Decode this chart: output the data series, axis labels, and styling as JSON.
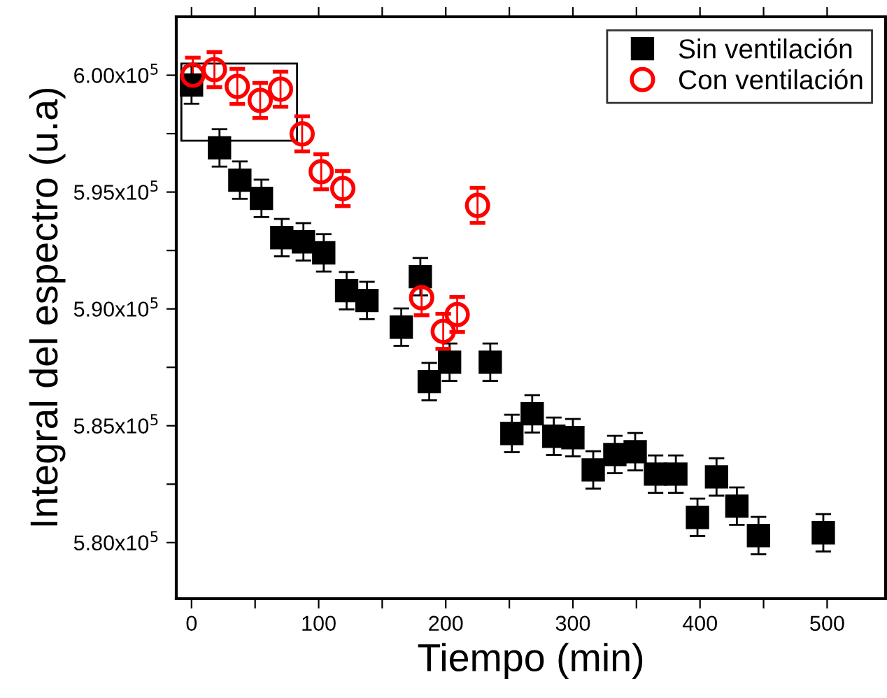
{
  "chart_data": {
    "type": "scatter",
    "xlabel": "Tiempo (min)",
    "ylabel": "Integral del espectro (u.a)",
    "xlim": [
      -12,
      546
    ],
    "ylim": [
      577600,
      602500
    ],
    "xticks": [
      0,
      {
        "value": 50,
        "label": null
      },
      100,
      {
        "value": 150,
        "label": null
      },
      200,
      {
        "value": 250,
        "label": null
      },
      300,
      {
        "value": 350,
        "label": null
      },
      400,
      {
        "value": 450,
        "label": null
      },
      500
    ],
    "yticks": [
      {
        "value": 580000,
        "label": "5.80x10$^{5}$"
      },
      {
        "value": 582500,
        "label": null
      },
      {
        "value": 585000,
        "label": "5.85x10$^{5}$"
      },
      {
        "value": 587500,
        "label": null
      },
      {
        "value": 590000,
        "label": "5.90x10$^{5}$"
      },
      {
        "value": 592500,
        "label": null
      },
      {
        "value": 595000,
        "label": "5.95x10$^{5}$"
      },
      {
        "value": 597500,
        "label": null
      },
      {
        "value": 600000,
        "label": "6.00x10$^{5}$"
      }
    ],
    "grid": false,
    "legend": "top right",
    "series": [
      {
        "name": "Sin ventilación",
        "color": "#000000",
        "marker": "square",
        "x": [
          0,
          22,
          38,
          55,
          71,
          88,
          104,
          122,
          138,
          165,
          180,
          187,
          203,
          235,
          252,
          268,
          285,
          300,
          316,
          333,
          349,
          365,
          381,
          398,
          413,
          429,
          446,
          497
        ],
        "values": [
          599580,
          596890,
          595510,
          594730,
          593050,
          592870,
          592400,
          590780,
          590360,
          589220,
          591380,
          586890,
          587720,
          587720,
          584670,
          585510,
          584550,
          584490,
          583110,
          583770,
          583890,
          582930,
          582930,
          581080,
          582810,
          581560,
          580300,
          580420
        ],
        "errors": [
          800,
          800,
          800,
          800,
          800,
          800,
          800,
          800,
          800,
          800,
          800,
          800,
          800,
          800,
          800,
          800,
          800,
          800,
          800,
          800,
          800,
          800,
          800,
          800,
          800,
          800,
          800,
          800
        ]
      },
      {
        "name": "Con ventilación",
        "color": "#ff0000",
        "marker": "circle",
        "x": [
          1,
          18,
          36,
          54,
          70,
          87,
          102,
          119,
          181,
          198,
          209,
          225
        ],
        "values": [
          600000,
          600240,
          599520,
          598920,
          599400,
          597490,
          595870,
          595150,
          590480,
          589040,
          589760,
          594430
        ],
        "errors": [
          750,
          750,
          750,
          750,
          750,
          750,
          750,
          750,
          750,
          750,
          750,
          750
        ]
      }
    ]
  }
}
